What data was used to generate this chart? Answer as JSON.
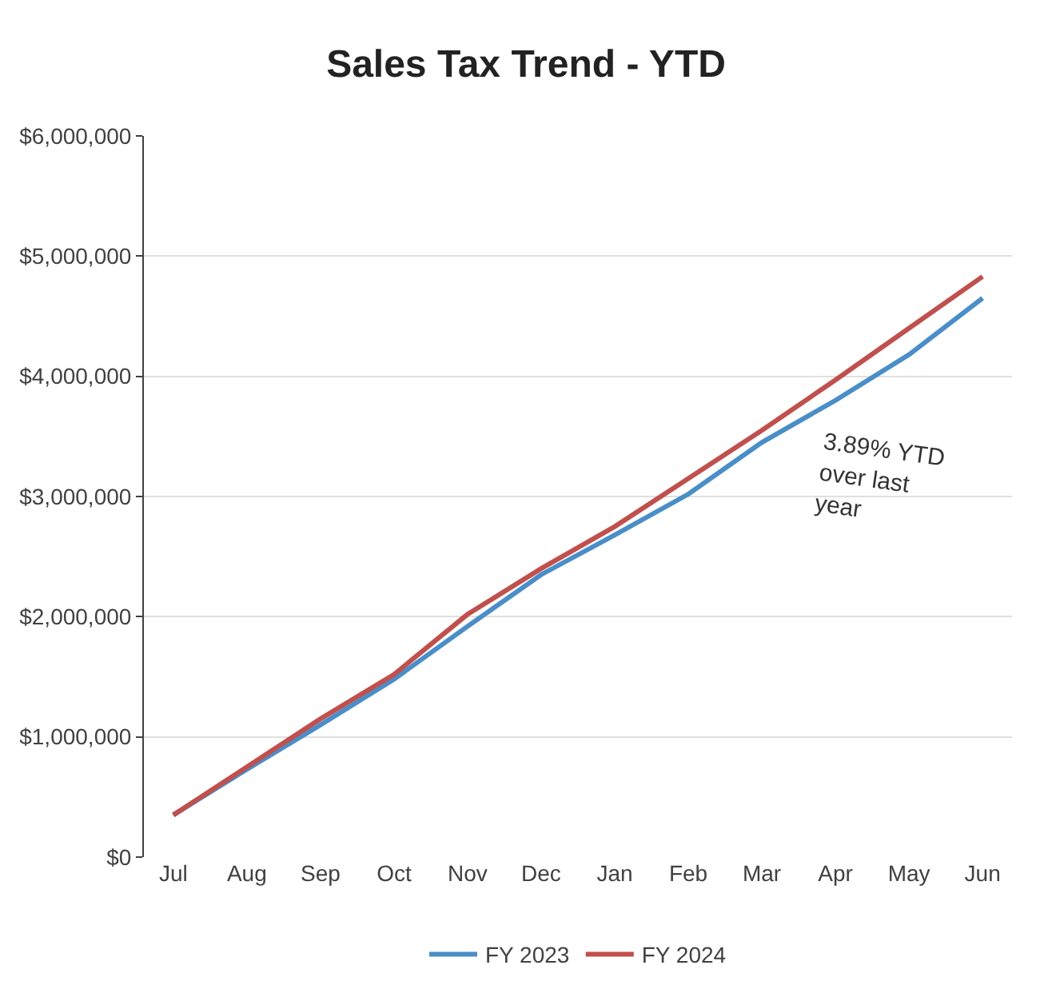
{
  "chart_data": {
    "type": "line",
    "title": "Sales Tax Trend - YTD",
    "categories": [
      "Jul",
      "Aug",
      "Sep",
      "Oct",
      "Nov",
      "Dec",
      "Jan",
      "Feb",
      "Mar",
      "Apr",
      "May",
      "Jun"
    ],
    "series": [
      {
        "name": "FY 2023",
        "color": "#4a8ec8",
        "values": [
          350000,
          730000,
          1100000,
          1480000,
          1920000,
          2350000,
          2680000,
          3020000,
          3450000,
          3800000,
          4180000,
          4650000
        ]
      },
      {
        "name": "FY 2024",
        "color": "#c0504d",
        "values": [
          350000,
          750000,
          1150000,
          1520000,
          2020000,
          2400000,
          2750000,
          3150000,
          3550000,
          3970000,
          4400000,
          4830000
        ]
      }
    ],
    "ylim": [
      0,
      6000000
    ],
    "yticks": [
      {
        "value": 0,
        "label": "$0"
      },
      {
        "value": 1000000,
        "label": "$1,000,000"
      },
      {
        "value": 2000000,
        "label": "$2,000,000"
      },
      {
        "value": 3000000,
        "label": "$3,000,000"
      },
      {
        "value": 4000000,
        "label": "$4,000,000"
      },
      {
        "value": 5000000,
        "label": "$5,000,000"
      },
      {
        "value": 6000000,
        "label": "$6,000,000"
      }
    ],
    "annotations": [
      "3.89% YTD\nover last\nyear"
    ],
    "grid": "y",
    "legend": "bottom",
    "marker": "none",
    "line_style": "solid"
  }
}
